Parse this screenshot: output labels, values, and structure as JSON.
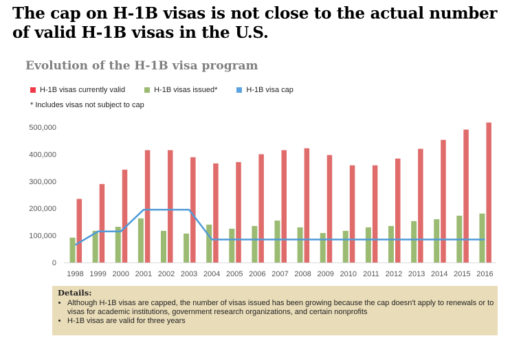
{
  "headline": "The cap on H-1B visas is not close to the actual number of valid H-1B visas in the U.S.",
  "details": {
    "heading": "Details:",
    "bullets": [
      "Although H-1B visas are capped, the number of visas issued has been growing because the cap doesn't apply to renewals or to visas for academic institutions, government research organizations, and certain nonprofits",
      "H-1B visas are valid for three years"
    ]
  },
  "chart_data": {
    "type": "bar",
    "title": "Evolution of the H-1B visa program",
    "footnote": "* Includes visas not subject to cap",
    "xlabel": "",
    "ylabel": "",
    "ylim": [
      0,
      500000
    ],
    "yticks": [
      0,
      100000,
      200000,
      300000,
      400000,
      500000
    ],
    "ytick_labels": [
      "0",
      "100,000",
      "200,000",
      "300,000",
      "400,000",
      "500,000"
    ],
    "legend_position": "top-left",
    "grid": false,
    "categories": [
      "1998",
      "1999",
      "2000",
      "2001",
      "2002",
      "2003",
      "2004",
      "2005",
      "2006",
      "2007",
      "2008",
      "2009",
      "2010",
      "2011",
      "2012",
      "2013",
      "2014",
      "2015",
      "2016"
    ],
    "series": [
      {
        "name": "H-1B visas currently valid",
        "type": "bar",
        "color": "#e06b6b",
        "values": [
          235000,
          290000,
          343000,
          415000,
          415000,
          389000,
          366000,
          371000,
          400000,
          415000,
          422000,
          397000,
          359000,
          359000,
          384000,
          420000,
          453000,
          491000,
          517000
        ]
      },
      {
        "name": "H-1B visas issued*",
        "type": "bar",
        "color": "#9bbb73",
        "values": [
          92000,
          117000,
          132000,
          163000,
          117000,
          107000,
          140000,
          125000,
          135000,
          155000,
          130000,
          109000,
          117000,
          130000,
          135000,
          153000,
          160000,
          173000,
          181000
        ]
      },
      {
        "name": "H-1B visa cap",
        "type": "line",
        "color": "#4f9ad8",
        "values": [
          65000,
          115000,
          115000,
          195000,
          195000,
          195000,
          85000,
          85000,
          85000,
          85000,
          85000,
          85000,
          85000,
          85000,
          85000,
          85000,
          85000,
          85000,
          85000
        ]
      }
    ]
  }
}
